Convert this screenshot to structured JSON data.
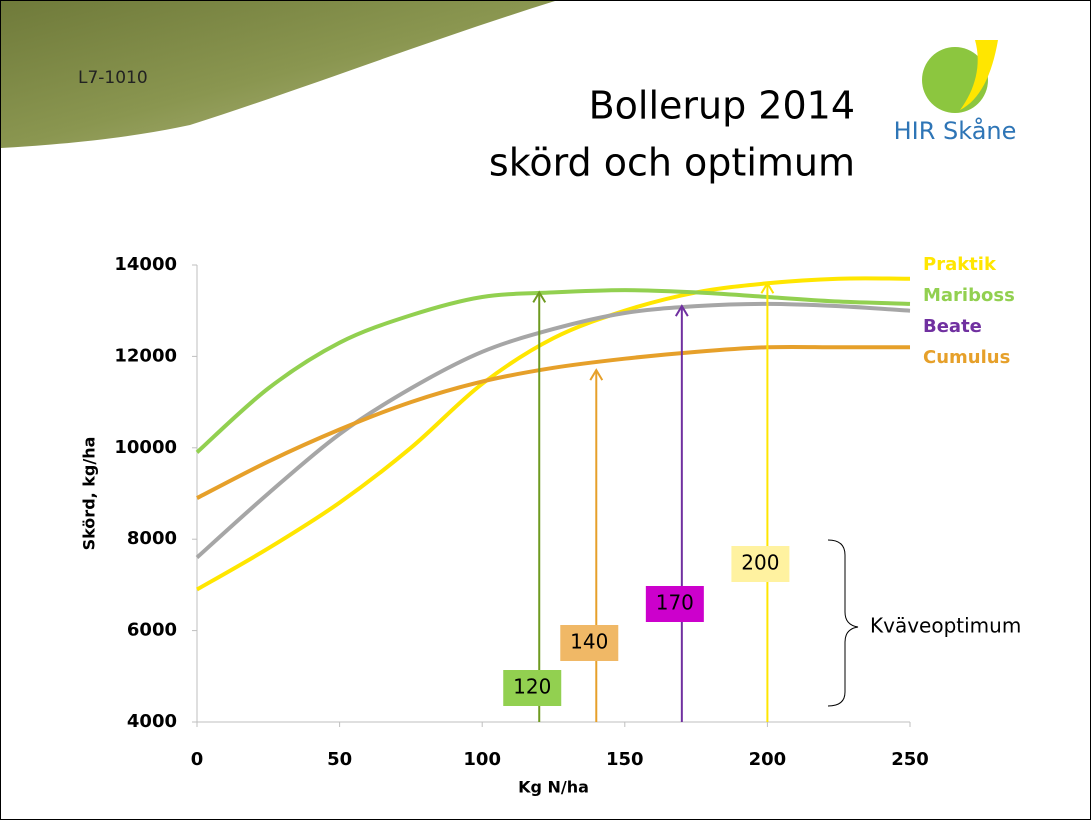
{
  "slide_tag": "L7-1010",
  "logo_text": "HIR Skåne",
  "chart_data": {
    "type": "line",
    "title": [
      "Bollerup 2014",
      "skörd och optimum"
    ],
    "x_label": "Kg N/ha",
    "y_label": "Skörd, kg/ha",
    "x": [
      0,
      25,
      50,
      75,
      100,
      125,
      150,
      175,
      200,
      225,
      250
    ],
    "xlim": [
      0,
      250
    ],
    "xticks": [
      0,
      50,
      100,
      150,
      200,
      250
    ],
    "ylim": [
      4000,
      14000
    ],
    "yticks": [
      4000,
      6000,
      8000,
      10000,
      12000,
      14000
    ],
    "grid": false,
    "series": [
      {
        "name": "Praktik",
        "color": "#ffe600",
        "label_color": "#ffe600",
        "values": [
          6900,
          7800,
          8800,
          10000,
          11400,
          12400,
          13000,
          13400,
          13600,
          13700,
          13700
        ]
      },
      {
        "name": "Mariboss",
        "color": "#92d050",
        "label_color": "#92d050",
        "values": [
          9900,
          11300,
          12300,
          12900,
          13300,
          13400,
          13450,
          13400,
          13300,
          13200,
          13150
        ]
      },
      {
        "name": "Beate",
        "color": "#a6a6a6",
        "label_color": "#7030a0",
        "values": [
          7600,
          9000,
          10300,
          11300,
          12100,
          12600,
          12950,
          13100,
          13150,
          13100,
          13000
        ]
      },
      {
        "name": "Cumulus",
        "color": "#e6a02a",
        "label_color": "#e6a02a",
        "values": [
          8900,
          9700,
          10400,
          11000,
          11450,
          11750,
          11950,
          12100,
          12200,
          12200,
          12200
        ]
      }
    ],
    "arrows": [
      {
        "value": 120,
        "top": 13400,
        "color": "#6e9a20",
        "box_color": "#92d050"
      },
      {
        "value": 140,
        "top": 11700,
        "color": "#e6a02a",
        "box_color": "#f0b866"
      },
      {
        "value": 170,
        "top": 13100,
        "color": "#7030a0",
        "box_color": "#cc00cc"
      },
      {
        "value": 200,
        "top": 13600,
        "color": "#ffe600",
        "box_color": "#fff2a0"
      }
    ],
    "brace_label": "Kväveoptimum"
  }
}
